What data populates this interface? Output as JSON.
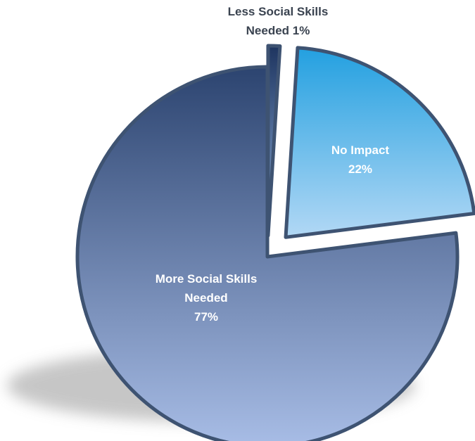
{
  "chart_data": {
    "type": "pie",
    "categories": [
      "More Social Skills Needed",
      "No Impact",
      "Less Social Skills Needed"
    ],
    "values": [
      77,
      22,
      1
    ],
    "value_labels": [
      "77%",
      "22%",
      "1%"
    ],
    "label_lines": [
      [
        "More Social Skills",
        "Needed",
        "77%"
      ],
      [
        "No Impact",
        "22%"
      ],
      [
        "Less Social Skills",
        "Needed 1%"
      ]
    ],
    "colors": {
      "more_top": "#2c4470",
      "more_bottom": "#a8bde6",
      "noimpact_top": "#23a0e0",
      "noimpact_bottom": "#b2d8f5",
      "less_top": "#1e3560",
      "less_bottom": "#8fb0dc",
      "edge": "#3e5372",
      "shadow": "#bdbdbd",
      "dark_label": "#3a4350"
    },
    "legend": "none"
  }
}
